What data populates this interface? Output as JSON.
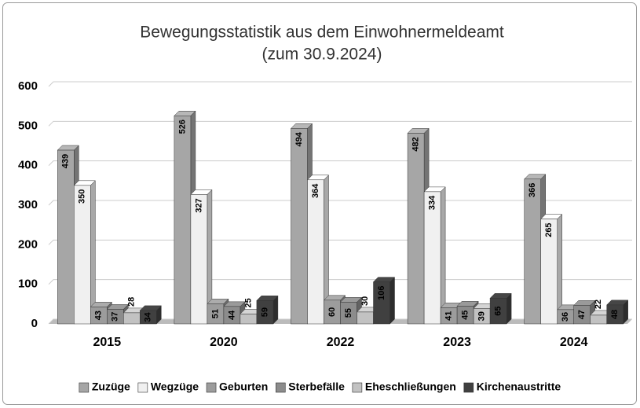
{
  "chart_data": {
    "type": "bar3d",
    "title": "Bewegungsstatistik aus dem Einwohnermeldeamt",
    "subtitle": "(zum 30.9.2024)",
    "categories": [
      "2015",
      "2020",
      "2022",
      "2023",
      "2024"
    ],
    "series": [
      {
        "name": "Zuzüge",
        "color": "#a6a6a6",
        "values": [
          439,
          526,
          494,
          482,
          366
        ]
      },
      {
        "name": "Wegzüge",
        "color": "#f0f0f0",
        "values": [
          350,
          327,
          364,
          334,
          265
        ]
      },
      {
        "name": "Geburten",
        "color": "#9c9c9c",
        "values": [
          43,
          51,
          60,
          41,
          36
        ]
      },
      {
        "name": "Sterbefälle",
        "color": "#8c8c8c",
        "values": [
          37,
          44,
          55,
          45,
          47
        ]
      },
      {
        "name": "Eheschließungen",
        "color": "#c2c2c2",
        "values": [
          28,
          25,
          30,
          39,
          22
        ]
      },
      {
        "name": "Kirchenaustritte",
        "color": "#404040",
        "values": [
          34,
          59,
          106,
          65,
          48
        ]
      }
    ],
    "ylim": [
      0,
      600
    ],
    "yticks": [
      0,
      100,
      200,
      300,
      400,
      500,
      600
    ],
    "grid": true,
    "legend": "bottom"
  }
}
